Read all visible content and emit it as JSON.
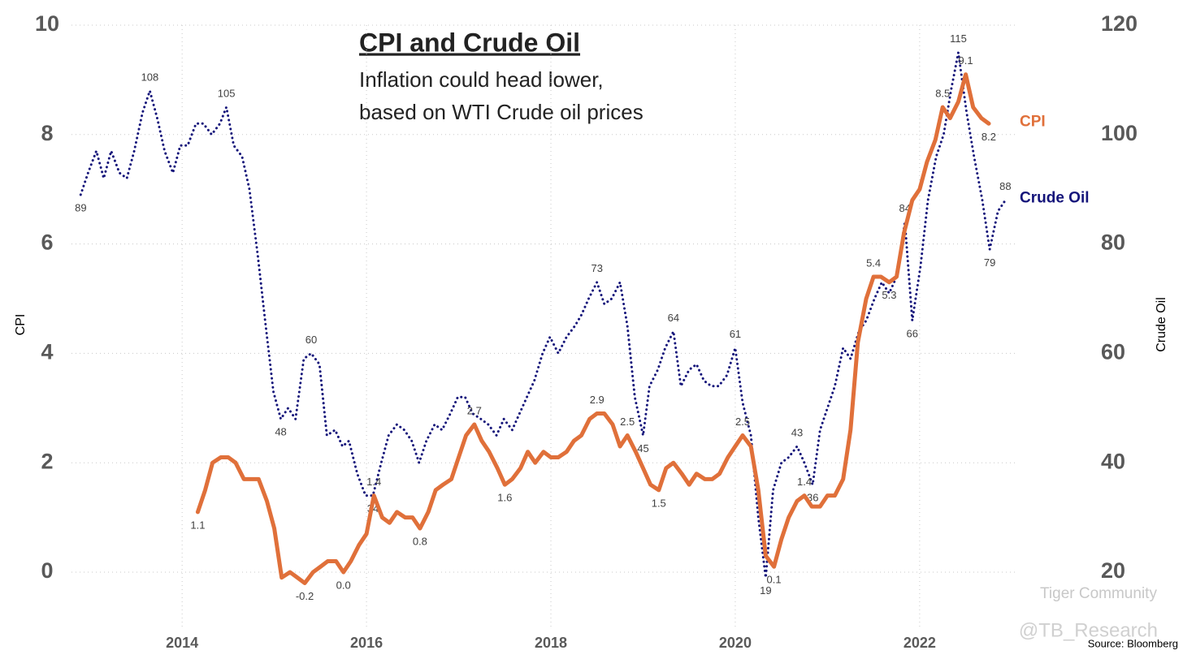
{
  "chart_data": {
    "type": "line",
    "title": "CPI and Crude Oil",
    "subtitle": [
      "Inflation could head lower,",
      "based on WTI Crude oil prices"
    ],
    "y_label": "CPI",
    "y2_label": "Crude Oil",
    "source": "Source: Bloomberg",
    "watermark": [
      "Tiger Community",
      "@TB_Research"
    ],
    "xlim": [
      2012.8,
      2023.05
    ],
    "xticks": [
      2014,
      2016,
      2018,
      2020,
      2022
    ],
    "ylim": [
      0,
      10
    ],
    "yticks": [
      0,
      2,
      4,
      6,
      8,
      10
    ],
    "y2lim": [
      20,
      120
    ],
    "y2ticks": [
      20,
      40,
      60,
      80,
      100,
      120
    ],
    "grid": true,
    "series": [
      {
        "name": "CPI",
        "color": "#e0703a",
        "axis": "y",
        "x": [
          2014.17,
          2014.25,
          2014.33,
          2014.42,
          2014.5,
          2014.58,
          2014.67,
          2014.75,
          2014.83,
          2014.92,
          2015,
          2015.08,
          2015.17,
          2015.25,
          2015.33,
          2015.42,
          2015.5,
          2015.58,
          2015.67,
          2015.75,
          2015.83,
          2015.92,
          2016,
          2016.08,
          2016.17,
          2016.25,
          2016.33,
          2016.42,
          2016.5,
          2016.58,
          2016.67,
          2016.75,
          2016.83,
          2016.92,
          2017,
          2017.08,
          2017.17,
          2017.25,
          2017.33,
          2017.42,
          2017.5,
          2017.58,
          2017.67,
          2017.75,
          2017.83,
          2017.92,
          2018,
          2018.08,
          2018.17,
          2018.25,
          2018.33,
          2018.42,
          2018.5,
          2018.58,
          2018.67,
          2018.75,
          2018.83,
          2018.92,
          2019,
          2019.08,
          2019.17,
          2019.25,
          2019.33,
          2019.42,
          2019.5,
          2019.58,
          2019.67,
          2019.75,
          2019.83,
          2019.92,
          2020,
          2020.08,
          2020.17,
          2020.25,
          2020.33,
          2020.42,
          2020.5,
          2020.58,
          2020.67,
          2020.75,
          2020.83,
          2020.92,
          2021,
          2021.08,
          2021.17,
          2021.25,
          2021.33,
          2021.42,
          2021.5,
          2021.58,
          2021.67,
          2021.75,
          2021.83,
          2021.92,
          2022,
          2022.08,
          2022.17,
          2022.25,
          2022.33,
          2022.42,
          2022.5,
          2022.58,
          2022.67,
          2022.75
        ],
        "values": [
          1.1,
          1.5,
          2.0,
          2.1,
          2.1,
          2.0,
          1.7,
          1.7,
          1.7,
          1.3,
          0.8,
          -0.1,
          0.0,
          -0.1,
          -0.2,
          0.0,
          0.1,
          0.2,
          0.2,
          0.0,
          0.2,
          0.5,
          0.7,
          1.4,
          1.0,
          0.9,
          1.1,
          1.0,
          1.0,
          0.8,
          1.1,
          1.5,
          1.6,
          1.7,
          2.1,
          2.5,
          2.7,
          2.4,
          2.2,
          1.9,
          1.6,
          1.7,
          1.9,
          2.2,
          2.0,
          2.2,
          2.1,
          2.1,
          2.2,
          2.4,
          2.5,
          2.8,
          2.9,
          2.9,
          2.7,
          2.3,
          2.5,
          2.2,
          1.9,
          1.6,
          1.5,
          1.9,
          2.0,
          1.8,
          1.6,
          1.8,
          1.7,
          1.7,
          1.8,
          2.1,
          2.3,
          2.5,
          2.3,
          1.5,
          0.3,
          0.1,
          0.6,
          1.0,
          1.3,
          1.4,
          1.2,
          1.2,
          1.4,
          1.4,
          1.7,
          2.6,
          4.2,
          5.0,
          5.4,
          5.4,
          5.3,
          5.4,
          6.2,
          6.8,
          7.0,
          7.5,
          7.9,
          8.5,
          8.3,
          8.6,
          9.1,
          8.5,
          8.3,
          8.2
        ],
        "value_labels": [
          "1.1",
          null,
          null,
          null,
          null,
          null,
          null,
          null,
          null,
          null,
          null,
          null,
          null,
          null,
          "-0.2",
          null,
          null,
          null,
          null,
          "0.0",
          null,
          null,
          null,
          "1.4",
          null,
          null,
          null,
          null,
          null,
          "0.8",
          null,
          null,
          null,
          null,
          null,
          null,
          "2.7",
          null,
          null,
          null,
          "1.6",
          null,
          null,
          null,
          null,
          null,
          null,
          null,
          null,
          null,
          null,
          null,
          "2.9",
          null,
          null,
          null,
          "2.5",
          null,
          null,
          null,
          "1.5",
          null,
          null,
          null,
          null,
          null,
          null,
          null,
          null,
          null,
          null,
          "2.5",
          null,
          null,
          null,
          "0.1",
          null,
          null,
          null,
          "1.4",
          null,
          null,
          null,
          null,
          null,
          null,
          null,
          null,
          "5.4",
          null,
          "5.3",
          null,
          null,
          null,
          null,
          null,
          null,
          "8.5",
          null,
          null,
          "9.1",
          null,
          null,
          "8.2"
        ]
      },
      {
        "name": "Crude Oil",
        "color": "#14147a",
        "axis": "y2",
        "x": [
          2012.9,
          2012.98,
          2013.07,
          2013.15,
          2013.23,
          2013.32,
          2013.4,
          2013.48,
          2013.57,
          2013.65,
          2013.73,
          2013.81,
          2013.9,
          2013.98,
          2014.06,
          2014.15,
          2014.23,
          2014.32,
          2014.41,
          2014.48,
          2014.56,
          2014.65,
          2014.73,
          2014.82,
          2014.9,
          2014.99,
          2015.07,
          2015.15,
          2015.23,
          2015.32,
          2015.4,
          2015.49,
          2015.57,
          2015.66,
          2015.74,
          2015.81,
          2015.9,
          2015.99,
          2016.07,
          2016.16,
          2016.24,
          2016.33,
          2016.41,
          2016.49,
          2016.57,
          2016.65,
          2016.74,
          2016.82,
          2016.91,
          2016.99,
          2017.07,
          2017.15,
          2017.24,
          2017.32,
          2017.41,
          2017.49,
          2017.58,
          2017.66,
          2017.74,
          2017.82,
          2017.91,
          2017.99,
          2018.08,
          2018.17,
          2018.26,
          2018.33,
          2018.41,
          2018.5,
          2018.58,
          2018.66,
          2018.75,
          2018.83,
          2018.91,
          2019,
          2019.07,
          2019.16,
          2019.24,
          2019.33,
          2019.41,
          2019.5,
          2019.58,
          2019.66,
          2019.74,
          2019.82,
          2019.91,
          2020,
          2020.08,
          2020.17,
          2020.25,
          2020.33,
          2020.41,
          2020.5,
          2020.58,
          2020.67,
          2020.75,
          2020.84,
          2020.92,
          2021,
          2021.08,
          2021.17,
          2021.25,
          2021.34,
          2021.42,
          2021.51,
          2021.59,
          2021.67,
          2021.75,
          2021.84,
          2021.92,
          2022.01,
          2022.09,
          2022.18,
          2022.26,
          2022.34,
          2022.42,
          2022.51,
          2022.59,
          2022.68,
          2022.76,
          2022.85,
          2022.93
        ],
        "values": [
          89,
          93,
          97,
          92,
          97,
          93,
          92,
          97,
          104,
          108,
          103,
          97,
          93,
          98,
          98,
          102,
          102,
          100,
          102,
          105,
          98,
          96,
          90,
          78,
          66,
          53,
          48,
          50,
          48,
          59,
          60,
          58,
          45,
          46,
          43,
          44,
          38,
          34,
          34,
          40,
          45,
          47,
          46,
          44,
          40,
          44,
          47,
          46,
          49,
          52,
          52,
          49,
          48,
          47,
          45,
          48,
          46,
          49,
          52,
          55,
          60,
          63,
          60,
          63,
          65,
          67,
          70,
          73,
          69,
          70,
          73,
          65,
          52,
          45,
          54,
          57,
          61,
          64,
          54,
          57,
          58,
          55,
          54,
          54,
          56,
          61,
          51,
          45,
          30,
          19,
          35,
          40,
          41,
          43,
          40,
          36,
          46,
          50,
          54,
          61,
          59,
          64,
          66,
          70,
          73,
          71,
          74,
          84,
          66,
          76,
          88,
          96,
          100,
          108,
          115,
          104,
          96,
          88,
          79,
          86,
          88
        ],
        "value_labels": [
          "89",
          null,
          null,
          null,
          null,
          null,
          null,
          null,
          null,
          "108",
          null,
          null,
          null,
          null,
          null,
          null,
          null,
          null,
          null,
          "105",
          null,
          null,
          null,
          null,
          null,
          null,
          "48",
          null,
          null,
          null,
          "60",
          null,
          null,
          null,
          null,
          null,
          null,
          null,
          "34",
          null,
          null,
          null,
          null,
          null,
          null,
          null,
          null,
          null,
          null,
          null,
          null,
          null,
          null,
          null,
          null,
          null,
          null,
          null,
          null,
          null,
          null,
          null,
          null,
          null,
          null,
          null,
          null,
          "73",
          null,
          null,
          null,
          null,
          null,
          "45",
          null,
          null,
          null,
          "64",
          null,
          null,
          null,
          null,
          null,
          null,
          null,
          "61",
          null,
          null,
          null,
          "19",
          null,
          null,
          null,
          "43",
          null,
          "36",
          null,
          null,
          null,
          null,
          null,
          null,
          null,
          null,
          null,
          null,
          null,
          "84",
          "66",
          null,
          null,
          null,
          null,
          null,
          "115",
          null,
          null,
          null,
          "79",
          null,
          "88"
        ]
      }
    ]
  }
}
